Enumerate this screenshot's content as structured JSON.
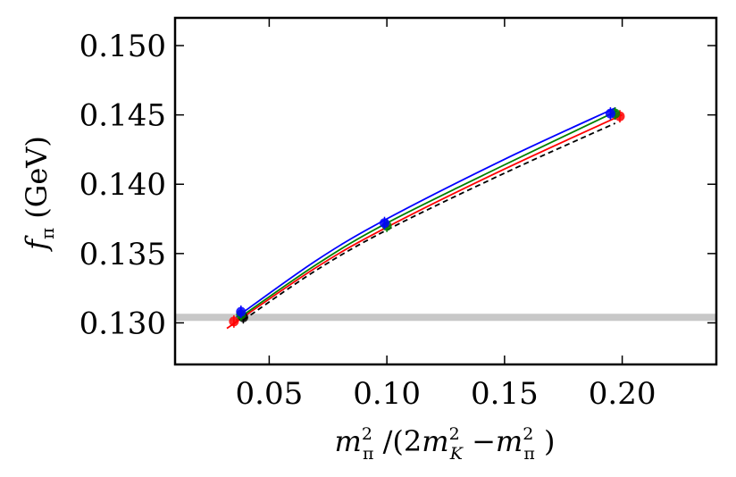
{
  "chart_data": {
    "type": "scatter",
    "xlabel": "m_π² /(2m_K² − m_π²)",
    "ylabel": "f_π (GeV)",
    "xlim": [
      0.01,
      0.24
    ],
    "ylim": [
      0.127,
      0.152
    ],
    "x_ticks": [
      0.05,
      0.1,
      0.15,
      0.2
    ],
    "x_tick_labels": [
      "0.05",
      "0.10",
      "0.15",
      "0.20"
    ],
    "y_ticks": [
      0.13,
      0.135,
      0.14,
      0.145,
      0.15
    ],
    "y_tick_labels": [
      "0.130",
      "0.135",
      "0.140",
      "0.145",
      "0.150"
    ],
    "grid": false,
    "reference_band": {
      "y": 0.1304,
      "color": "#c8c8c8"
    },
    "series": [
      {
        "color": "#0000ff",
        "line_style": "solid",
        "points": [
          {
            "x": 0.038,
            "y": 0.1308
          },
          {
            "x": 0.099,
            "y": 0.1372
          },
          {
            "x": 0.195,
            "y": 0.1451
          }
        ],
        "curve": [
          {
            "x": 0.036,
            "y": 0.1304
          },
          {
            "x": 0.07,
            "y": 0.1345
          },
          {
            "x": 0.1,
            "y": 0.1375
          },
          {
            "x": 0.15,
            "y": 0.1418
          },
          {
            "x": 0.197,
            "y": 0.1455
          }
        ]
      },
      {
        "color": "#008000",
        "line_style": "solid",
        "points": [
          {
            "x": 0.038,
            "y": 0.1306
          },
          {
            "x": 0.1,
            "y": 0.137
          },
          {
            "x": 0.197,
            "y": 0.1451
          }
        ],
        "curve": [
          {
            "x": 0.036,
            "y": 0.1302
          },
          {
            "x": 0.07,
            "y": 0.1342
          },
          {
            "x": 0.1,
            "y": 0.1372
          },
          {
            "x": 0.15,
            "y": 0.1414
          },
          {
            "x": 0.198,
            "y": 0.1453
          }
        ]
      },
      {
        "color": "#ff0000",
        "line_style": "solid",
        "points": [
          {
            "x": 0.035,
            "y": 0.1301
          },
          {
            "x": 0.199,
            "y": 0.1449
          }
        ],
        "curve": [
          {
            "x": 0.032,
            "y": 0.1296
          },
          {
            "x": 0.07,
            "y": 0.134
          },
          {
            "x": 0.1,
            "y": 0.1369
          },
          {
            "x": 0.15,
            "y": 0.1411
          },
          {
            "x": 0.2,
            "y": 0.145
          }
        ]
      },
      {
        "color": "#000000",
        "line_style": "dashed",
        "points": [
          {
            "x": 0.039,
            "y": 0.1304
          }
        ],
        "curve": [
          {
            "x": 0.039,
            "y": 0.1302
          },
          {
            "x": 0.07,
            "y": 0.1338
          },
          {
            "x": 0.1,
            "y": 0.1367
          },
          {
            "x": 0.15,
            "y": 0.1408
          },
          {
            "x": 0.197,
            "y": 0.1444
          }
        ]
      }
    ]
  }
}
